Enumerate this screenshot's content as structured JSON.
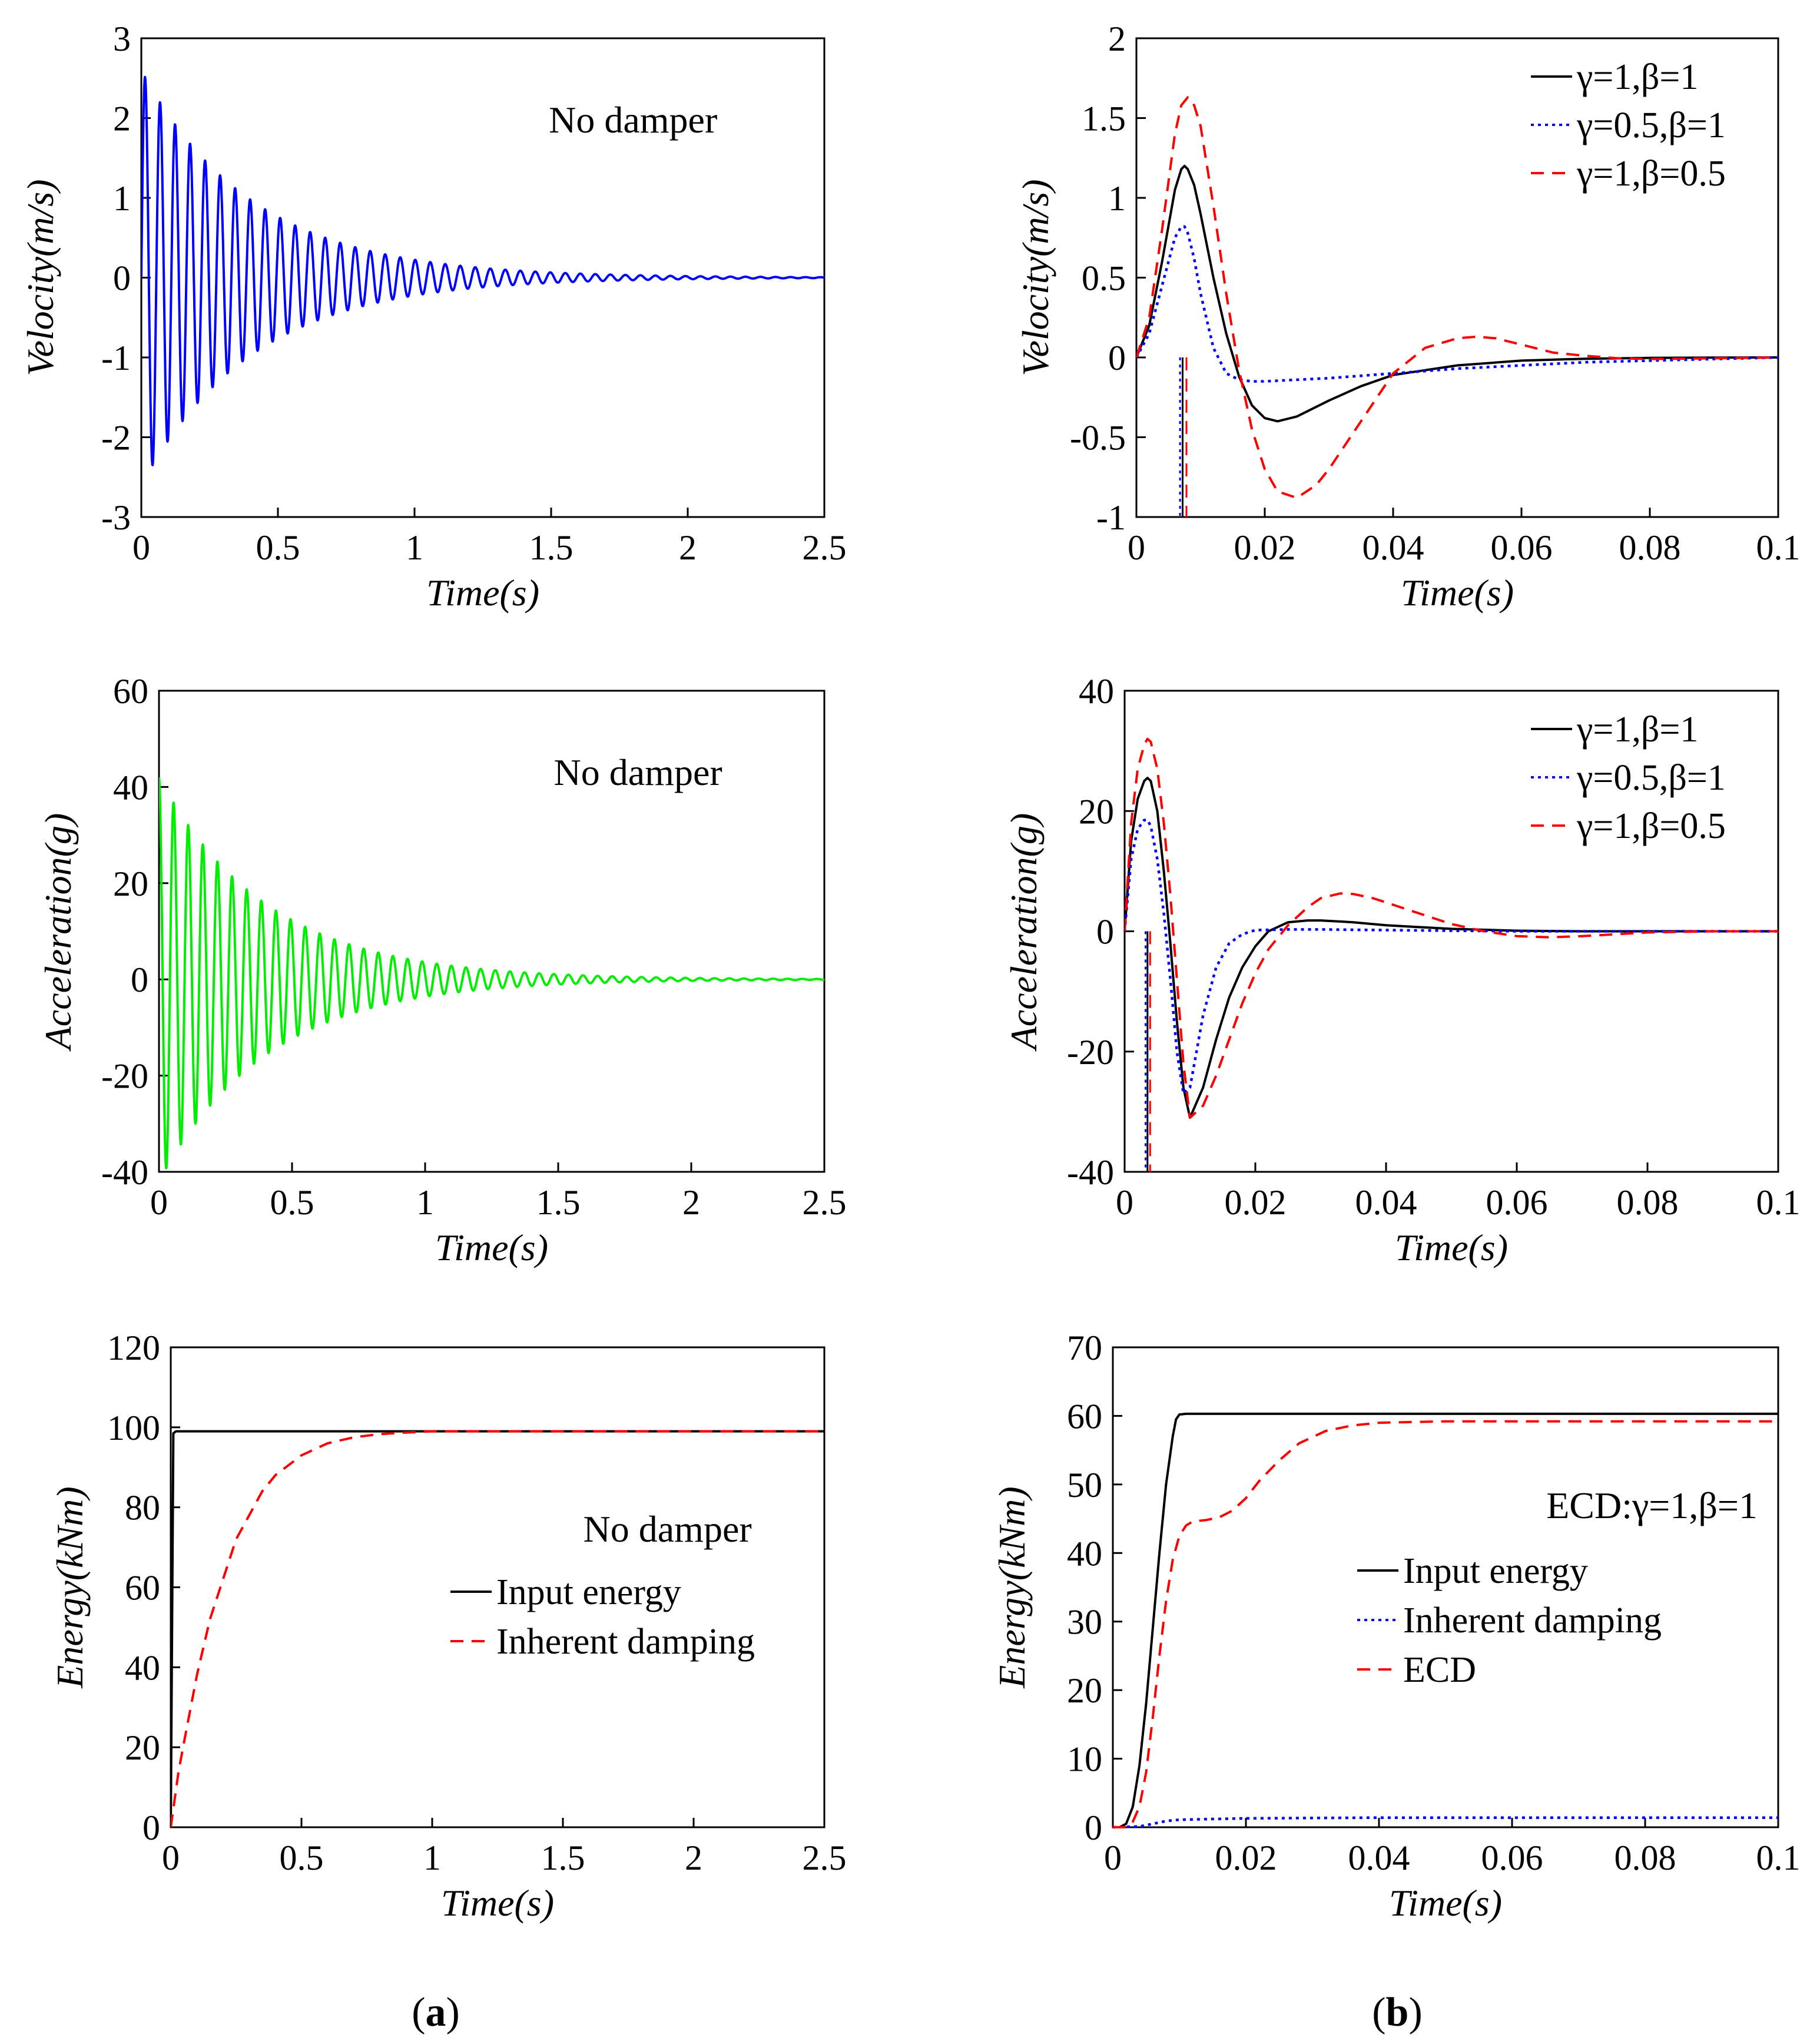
{
  "figure": {
    "panel_labels": [
      {
        "open": "(",
        "letter": "a",
        "close": ")"
      },
      {
        "open": "(",
        "letter": "b",
        "close": ")"
      }
    ]
  },
  "colors": {
    "blue": "#0000ff",
    "green": "#00ee00",
    "red": "#ff0000",
    "black": "#000000"
  },
  "chart_data": [
    {
      "id": "a1",
      "type": "line",
      "title": "",
      "xlabel": "Time(s)",
      "ylabel": "Velocity(m/s)",
      "xlim": [
        0,
        2.5
      ],
      "ylim": [
        -3,
        3
      ],
      "xticks": [
        0,
        0.5,
        1,
        1.5,
        2,
        2.5
      ],
      "xtick_labels": [
        "0",
        "0.5",
        "1",
        "1.5",
        "2",
        "2.5"
      ],
      "yticks": [
        -3,
        -2,
        -1,
        0,
        1,
        2,
        3
      ],
      "ytick_labels": [
        "-3",
        "-2",
        "-1",
        "0",
        "1",
        "2",
        "3"
      ],
      "annotation": "No damper",
      "annotation_pos": "top-right",
      "series": [
        {
          "name": "Velocity",
          "color": "blue",
          "dash": "solid",
          "kind": "decay_osc",
          "params": {
            "amplitude": 2.6,
            "frequency": 18.2,
            "decay": 2.45,
            "shape": "sin",
            "t_end": 2.5
          }
        }
      ]
    },
    {
      "id": "b1",
      "type": "line",
      "title": "",
      "xlabel": "Time(s)",
      "ylabel": "Velocity(m/s)",
      "xlim": [
        0,
        0.1
      ],
      "ylim": [
        -1,
        2
      ],
      "xticks": [
        0,
        0.02,
        0.04,
        0.06,
        0.08,
        0.1
      ],
      "xtick_labels": [
        "0",
        "0.02",
        "0.04",
        "0.06",
        "0.08",
        "0.1"
      ],
      "yticks": [
        -1,
        -0.5,
        0,
        0.5,
        1,
        1.5,
        2
      ],
      "ytick_labels": [
        "-1",
        "-0.5",
        "0",
        "0.5",
        "1",
        "1.5",
        "2"
      ],
      "legend_pos": "top-right",
      "series": [
        {
          "name": "γ=1,β=1",
          "color": "black",
          "dash": "solid",
          "x": [
            0,
            0.002,
            0.004,
            0.006,
            0.007,
            0.0075,
            0.008,
            0.009,
            0.01,
            0.012,
            0.014,
            0.016,
            0.018,
            0.02,
            0.022,
            0.025,
            0.03,
            0.035,
            0.04,
            0.05,
            0.06,
            0.07,
            0.08,
            0.09,
            0.1
          ],
          "y": [
            0,
            0.2,
            0.6,
            1.05,
            1.18,
            1.2,
            1.18,
            1.08,
            0.9,
            0.5,
            0.15,
            -0.12,
            -0.3,
            -0.38,
            -0.4,
            -0.37,
            -0.27,
            -0.18,
            -0.11,
            -0.05,
            -0.02,
            -0.008,
            -0.003,
            -0.001,
            0
          ]
        },
        {
          "name": "γ=0.5,β=1",
          "color": "blue",
          "dash": "dotted",
          "x": [
            0,
            0.002,
            0.004,
            0.006,
            0.007,
            0.0075,
            0.008,
            0.009,
            0.01,
            0.012,
            0.014,
            0.016,
            0.018,
            0.02,
            0.025,
            0.03,
            0.04,
            0.05,
            0.06,
            0.07,
            0.08,
            0.09,
            0.1
          ],
          "y": [
            0,
            0.15,
            0.45,
            0.75,
            0.82,
            0.82,
            0.78,
            0.62,
            0.4,
            0.06,
            -0.1,
            -0.14,
            -0.15,
            -0.15,
            -0.14,
            -0.13,
            -0.1,
            -0.07,
            -0.05,
            -0.03,
            -0.02,
            -0.01,
            0
          ]
        },
        {
          "name": "γ=1,β=0.5",
          "color": "red",
          "dash": "dashed",
          "x": [
            0,
            0.002,
            0.004,
            0.006,
            0.007,
            0.008,
            0.009,
            0.01,
            0.012,
            0.014,
            0.016,
            0.018,
            0.02,
            0.022,
            0.025,
            0.028,
            0.03,
            0.035,
            0.04,
            0.045,
            0.05,
            0.053,
            0.056,
            0.06,
            0.065,
            0.07,
            0.075,
            0.08,
            0.09,
            0.1
          ],
          "y": [
            0,
            0.25,
            0.8,
            1.4,
            1.58,
            1.63,
            1.58,
            1.45,
            0.95,
            0.4,
            -0.08,
            -0.45,
            -0.7,
            -0.84,
            -0.88,
            -0.8,
            -0.7,
            -0.4,
            -0.1,
            0.06,
            0.12,
            0.13,
            0.12,
            0.08,
            0.03,
            0.01,
            -0.005,
            -0.01,
            -0.005,
            0
          ]
        }
      ],
      "vlines": [
        {
          "x": 0.0072,
          "color": "black",
          "dash": "solid"
        },
        {
          "x": 0.0068,
          "color": "blue",
          "dash": "dotted"
        },
        {
          "x": 0.0078,
          "color": "red",
          "dash": "dashed"
        }
      ]
    },
    {
      "id": "a2",
      "type": "line",
      "title": "",
      "xlabel": "Time(s)",
      "ylabel": "Acceleration(g)",
      "xlim": [
        0,
        2.5
      ],
      "ylim": [
        -40,
        60
      ],
      "xticks": [
        0,
        0.5,
        1,
        1.5,
        2,
        2.5
      ],
      "xtick_labels": [
        "0",
        "0.5",
        "1",
        "1.5",
        "2",
        "2.5"
      ],
      "yticks": [
        -40,
        -20,
        0,
        20,
        40,
        60
      ],
      "ytick_labels": [
        "-40",
        "-20",
        "0",
        "20",
        "40",
        "60"
      ],
      "annotation": "No damper",
      "annotation_pos": "top-right",
      "series": [
        {
          "name": "Acceleration",
          "color": "green",
          "dash": "solid",
          "kind": "decay_osc",
          "params": {
            "amplitude": 42,
            "frequency": 18.2,
            "decay": 2.45,
            "shape": "cos",
            "t_end": 2.5
          }
        }
      ]
    },
    {
      "id": "b2",
      "type": "line",
      "title": "",
      "xlabel": "Time(s)",
      "ylabel": "Acceleration(g)",
      "xlim": [
        0,
        0.1
      ],
      "ylim": [
        -40,
        40
      ],
      "xticks": [
        0,
        0.02,
        0.04,
        0.06,
        0.08,
        0.1
      ],
      "xtick_labels": [
        "0",
        "0.02",
        "0.04",
        "0.06",
        "0.08",
        "0.1"
      ],
      "yticks": [
        -40,
        -20,
        0,
        20,
        40
      ],
      "ytick_labels": [
        "-40",
        "-20",
        "0",
        "20",
        "40"
      ],
      "legend_pos": "top-right",
      "series": [
        {
          "name": "γ=1,β=1",
          "color": "black",
          "dash": "solid",
          "x": [
            0,
            0.001,
            0.002,
            0.003,
            0.0035,
            0.004,
            0.005,
            0.006,
            0.007,
            0.008,
            0.009,
            0.01,
            0.012,
            0.014,
            0.016,
            0.018,
            0.02,
            0.022,
            0.025,
            0.028,
            0.03,
            0.035,
            0.04,
            0.05,
            0.06,
            0.07,
            0.08,
            0.09,
            0.1
          ],
          "y": [
            0,
            15,
            22,
            25,
            25.5,
            25,
            20,
            10,
            -2,
            -15,
            -26,
            -31,
            -26,
            -18,
            -11,
            -6,
            -2.5,
            0,
            1.5,
            1.8,
            1.8,
            1.5,
            1.0,
            0.4,
            0.1,
            0,
            0,
            0,
            0
          ]
        },
        {
          "name": "γ=0.5,β=1",
          "color": "blue",
          "dash": "dotted",
          "x": [
            0,
            0.001,
            0.002,
            0.003,
            0.0035,
            0.004,
            0.005,
            0.006,
            0.007,
            0.008,
            0.009,
            0.01,
            0.011,
            0.012,
            0.014,
            0.016,
            0.018,
            0.02,
            0.025,
            0.03,
            0.04,
            0.05,
            0.06,
            0.07,
            0.08,
            0.1
          ],
          "y": [
            0,
            12,
            17,
            18.5,
            18.5,
            17.5,
            12,
            3,
            -8,
            -20,
            -27,
            -26,
            -20,
            -14,
            -6,
            -2,
            -0.5,
            0.2,
            0.3,
            0.3,
            0.2,
            0.1,
            0,
            0,
            0,
            0
          ]
        },
        {
          "name": "γ=1,β=0.5",
          "color": "red",
          "dash": "dashed",
          "x": [
            0,
            0.001,
            0.002,
            0.003,
            0.0035,
            0.004,
            0.005,
            0.006,
            0.007,
            0.008,
            0.009,
            0.01,
            0.012,
            0.014,
            0.016,
            0.018,
            0.02,
            0.022,
            0.025,
            0.028,
            0.03,
            0.033,
            0.035,
            0.038,
            0.04,
            0.045,
            0.05,
            0.055,
            0.06,
            0.065,
            0.07,
            0.075,
            0.08,
            0.09,
            0.1
          ],
          "y": [
            0,
            18,
            27,
            31,
            32,
            31.5,
            27,
            18,
            6,
            -8,
            -22,
            -31,
            -29,
            -24,
            -18,
            -12,
            -7,
            -3,
            1,
            4,
            5.5,
            6.3,
            6.2,
            5.5,
            4.8,
            3,
            1.2,
            0,
            -0.8,
            -1,
            -0.8,
            -0.5,
            -0.2,
            0,
            0
          ]
        }
      ],
      "vlines": [
        {
          "x": 0.0035,
          "color": "black",
          "dash": "solid"
        },
        {
          "x": 0.0032,
          "color": "blue",
          "dash": "dotted"
        },
        {
          "x": 0.0039,
          "color": "red",
          "dash": "dashed"
        }
      ]
    },
    {
      "id": "a3",
      "type": "line",
      "title": "",
      "xlabel": "Time(s)",
      "ylabel": "Energy(kNm)",
      "xlim": [
        0,
        2.5
      ],
      "ylim": [
        0,
        120
      ],
      "xticks": [
        0,
        0.5,
        1,
        1.5,
        2,
        2.5
      ],
      "xtick_labels": [
        "0",
        "0.5",
        "1",
        "1.5",
        "2",
        "2.5"
      ],
      "yticks": [
        0,
        20,
        40,
        60,
        80,
        100,
        120
      ],
      "ytick_labels": [
        "0",
        "20",
        "40",
        "60",
        "80",
        "100",
        "120"
      ],
      "annotation": "No damper",
      "annotation_pos": "right-middle",
      "legend_pos": "right-middle",
      "series": [
        {
          "name": "Input energy",
          "color": "black",
          "dash": "solid",
          "x": [
            0,
            0.01,
            0.02,
            2.5
          ],
          "y": [
            0,
            98.5,
            99,
            99
          ]
        },
        {
          "name": "Inherent damping",
          "color": "red",
          "dash": "dashed",
          "x": [
            0,
            0.03,
            0.05,
            0.1,
            0.15,
            0.2,
            0.25,
            0.3,
            0.35,
            0.4,
            0.5,
            0.6,
            0.7,
            0.8,
            0.9,
            1.0,
            1.2,
            1.5,
            2.0,
            2.5
          ],
          "y": [
            0,
            14,
            21,
            38,
            52,
            62,
            72,
            78,
            84,
            88,
            93,
            96,
            97.5,
            98.3,
            98.7,
            99,
            99,
            99,
            99,
            99
          ]
        }
      ]
    },
    {
      "id": "b3",
      "type": "line",
      "title": "",
      "xlabel": "Time(s)",
      "ylabel": "Energy(kNm)",
      "xlim": [
        0,
        0.1
      ],
      "ylim": [
        0,
        70
      ],
      "xticks": [
        0,
        0.02,
        0.04,
        0.06,
        0.08,
        0.1
      ],
      "xtick_labels": [
        "0",
        "0.02",
        "0.04",
        "0.06",
        "0.08",
        "0.1"
      ],
      "yticks": [
        0,
        10,
        20,
        30,
        40,
        50,
        60,
        70
      ],
      "ytick_labels": [
        "0",
        "10",
        "20",
        "30",
        "40",
        "50",
        "60",
        "70"
      ],
      "annotation": "ECD:γ=1,β=1",
      "annotation_pos": "right-middle",
      "legend_pos": "right-middle",
      "series": [
        {
          "name": "Input energy",
          "color": "black",
          "dash": "solid",
          "x": [
            0,
            0.001,
            0.002,
            0.003,
            0.004,
            0.005,
            0.006,
            0.007,
            0.008,
            0.009,
            0.0095,
            0.01,
            0.011,
            0.1
          ],
          "y": [
            0,
            0,
            0.5,
            3,
            9,
            18,
            29,
            40,
            50,
            57,
            59.5,
            60.2,
            60.3,
            60.3
          ]
        },
        {
          "name": "Inherent damping",
          "color": "blue",
          "dash": "dotted",
          "x": [
            0,
            0.004,
            0.006,
            0.008,
            0.01,
            0.015,
            0.02,
            0.03,
            0.04,
            0.06,
            0.08,
            0.1
          ],
          "y": [
            0,
            0.1,
            0.5,
            0.9,
            1.1,
            1.2,
            1.3,
            1.35,
            1.4,
            1.4,
            1.4,
            1.4
          ]
        },
        {
          "name": "ECD",
          "color": "red",
          "dash": "dashed",
          "x": [
            0,
            0.002,
            0.003,
            0.004,
            0.005,
            0.006,
            0.007,
            0.008,
            0.009,
            0.01,
            0.011,
            0.012,
            0.014,
            0.016,
            0.018,
            0.02,
            0.022,
            0.025,
            0.028,
            0.032,
            0.036,
            0.04,
            0.05,
            0.06,
            0.08,
            0.1
          ],
          "y": [
            0,
            0,
            0.8,
            3,
            8,
            16,
            25,
            33,
            39,
            42.5,
            44,
            44.6,
            44.8,
            45.2,
            46.2,
            48,
            50.5,
            53.5,
            56,
            57.8,
            58.6,
            59,
            59.2,
            59.2,
            59.2,
            59.2
          ]
        }
      ]
    }
  ]
}
